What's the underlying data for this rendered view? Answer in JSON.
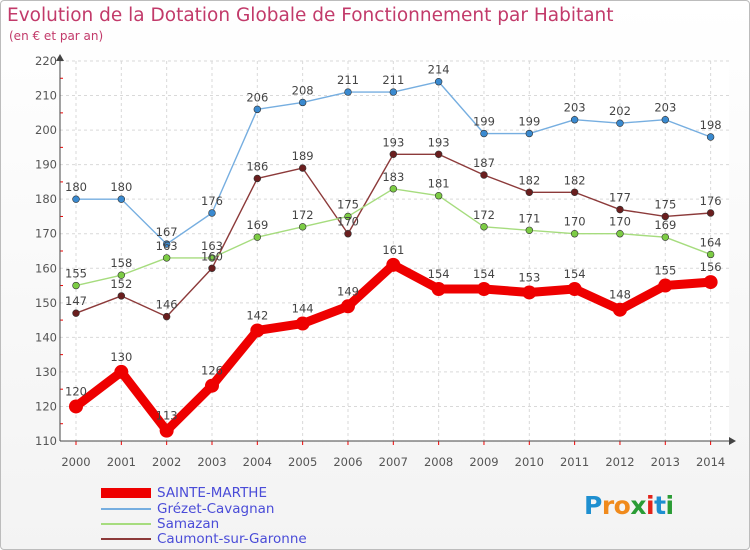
{
  "title": "Evolution de la Dotation Globale de Fonctionnement par Habitant",
  "subtitle": "(en € et par an)",
  "logo": {
    "text": "Proxiti",
    "letters": [
      "P",
      "r",
      "o",
      "x",
      "i",
      "t",
      "i"
    ],
    "colors": [
      "#1e8fd0",
      "#f08a1c",
      "#f08a1c",
      "#2a9c35",
      "#e2231a",
      "#1e8fd0",
      "#2a9c35"
    ]
  },
  "chart_data": {
    "type": "line",
    "title": "Evolution de la Dotation Globale de Fonctionnement par Habitant",
    "subtitle": "(en € et par an)",
    "xlabel": "",
    "ylabel": "",
    "ylim": [
      110,
      220
    ],
    "yticks": [
      "110",
      "120",
      "130",
      "140",
      "150",
      "160",
      "170",
      "180",
      "190",
      "200",
      "210",
      "220"
    ],
    "categories": [
      "2000",
      "2001",
      "2002",
      "2003",
      "2004",
      "2005",
      "2006",
      "2007",
      "2008",
      "2009",
      "2010",
      "2011",
      "2012",
      "2013",
      "2014"
    ],
    "grid": true,
    "legend_position": "bottom-left",
    "series": [
      {
        "name": "SAINTE-MARTHE",
        "color": "#ee0000",
        "marker": "#ee0000",
        "labels": [
          "120",
          "130",
          "113",
          "126",
          "142",
          "144",
          "149",
          "161",
          "154",
          "154",
          "153",
          "154",
          "148",
          "155",
          "156"
        ],
        "values": [
          120,
          130,
          113,
          126,
          142,
          144,
          149,
          161,
          154,
          154,
          153,
          154,
          148,
          155,
          156
        ]
      },
      {
        "name": "Grézet-Cavagnan",
        "color": "#76aee0",
        "marker": "#3a8ad0",
        "labels": [
          "180",
          "180",
          "167",
          "176",
          "206",
          "208",
          "211",
          "211",
          "214",
          "199",
          "199",
          "203",
          "202",
          "203",
          "198"
        ],
        "values": [
          180,
          180,
          167,
          176,
          206,
          208,
          211,
          211,
          214,
          199,
          199,
          203,
          202,
          203,
          198
        ]
      },
      {
        "name": "Samazan",
        "color": "#a6dc7e",
        "marker": "#7ccc44",
        "labels": [
          "155",
          "158",
          "163",
          "163",
          "169",
          "172",
          "175",
          "183",
          "181",
          "172",
          "171",
          "170",
          "170",
          "169",
          "164"
        ],
        "values": [
          155,
          158,
          163,
          163,
          169,
          172,
          175,
          183,
          181,
          172,
          171,
          170,
          170,
          169,
          164
        ]
      },
      {
        "name": "Caumont-sur-Garonne",
        "color": "#8c3a3a",
        "marker": "#6a1e1e",
        "labels": [
          "147",
          "152",
          "146",
          "160",
          "186",
          "189",
          "170",
          "193",
          "193",
          "187",
          "182",
          "182",
          "177",
          "175",
          "176"
        ],
        "values": [
          147,
          152,
          146,
          160,
          186,
          189,
          170,
          193,
          193,
          187,
          182,
          182,
          177,
          175,
          176
        ]
      }
    ]
  }
}
